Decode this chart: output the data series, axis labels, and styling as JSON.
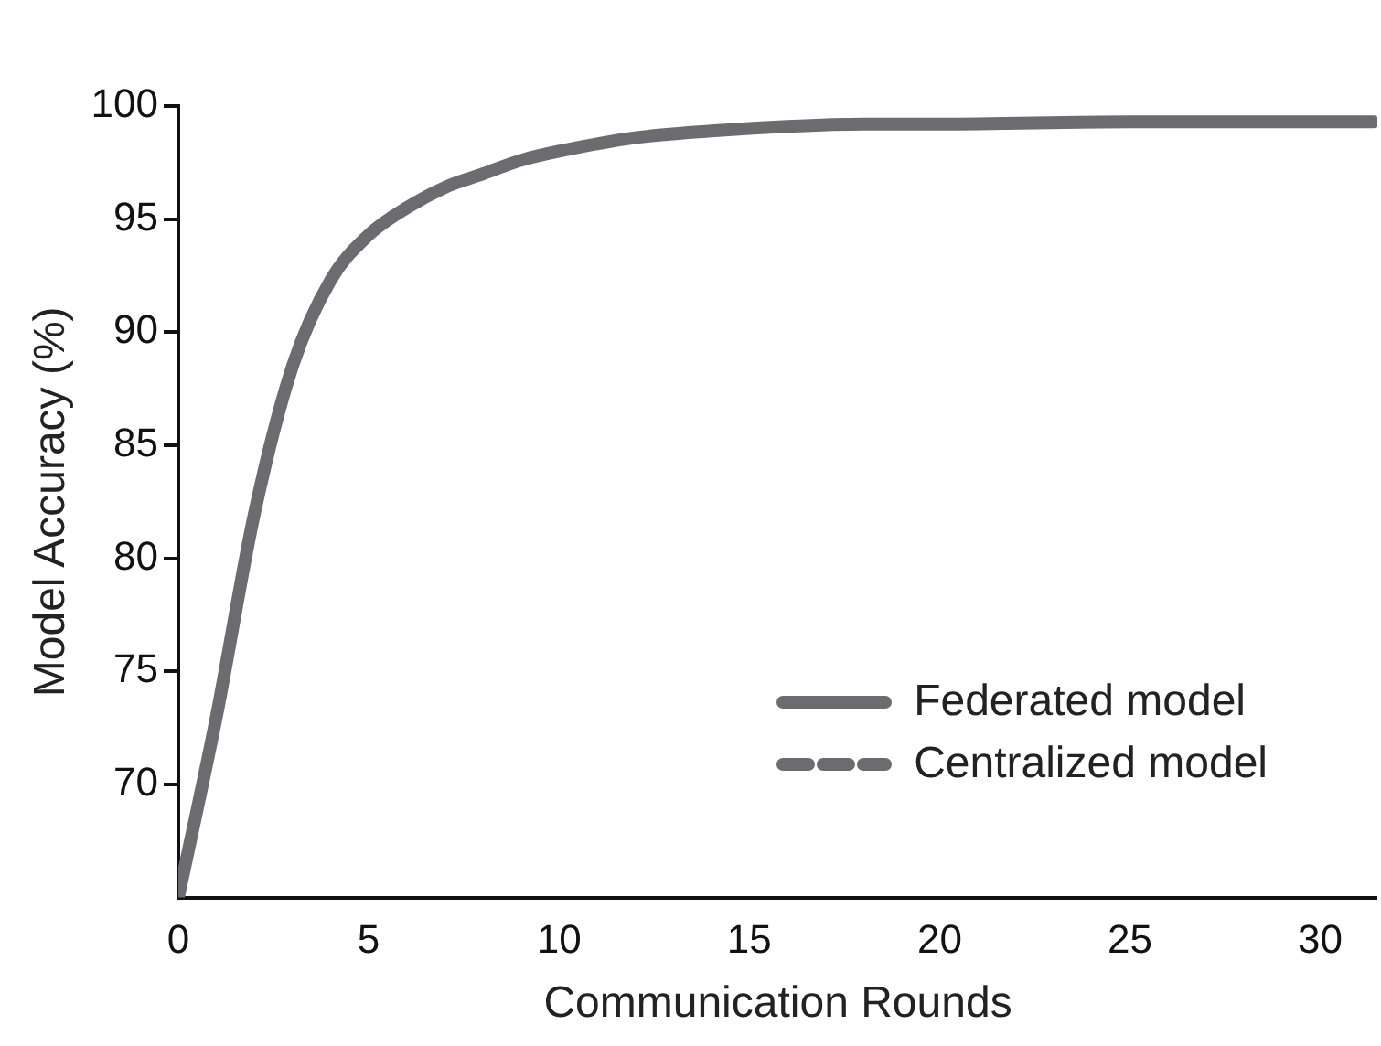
{
  "chart_data": {
    "type": "line",
    "xlabel": "Communication Rounds",
    "ylabel": "Model Accuracy (%)",
    "x": [
      0,
      1,
      2,
      3,
      4,
      5,
      6,
      7,
      8,
      9,
      10,
      12,
      14,
      16,
      18,
      20,
      25,
      31.4
    ],
    "series": [
      {
        "name": "Federated model",
        "color": "#6b6b70",
        "line_style": "solid",
        "values": [
          65,
          73,
          82,
          88.5,
          92.3,
          94.3,
          95.5,
          96.4,
          97.0,
          97.6,
          98.0,
          98.6,
          98.9,
          99.1,
          99.2,
          99.2,
          99.3,
          99.3
        ]
      },
      {
        "name": "Centralized model",
        "color": "#6b6b70",
        "line_style": "dashed",
        "values": [
          null,
          null,
          null,
          null,
          null,
          null,
          null,
          null,
          null,
          null,
          null,
          null,
          null,
          null,
          null,
          null,
          null,
          null
        ]
      }
    ],
    "xlim": [
      0,
      31.5
    ],
    "xticks": [
      0,
      5,
      10,
      15,
      20,
      25,
      30
    ],
    "ylim": [
      65,
      100
    ],
    "yticks": [
      70,
      75,
      80,
      85,
      90,
      95,
      100
    ],
    "grid": false,
    "legend": "bottom right",
    "marker": "none"
  }
}
